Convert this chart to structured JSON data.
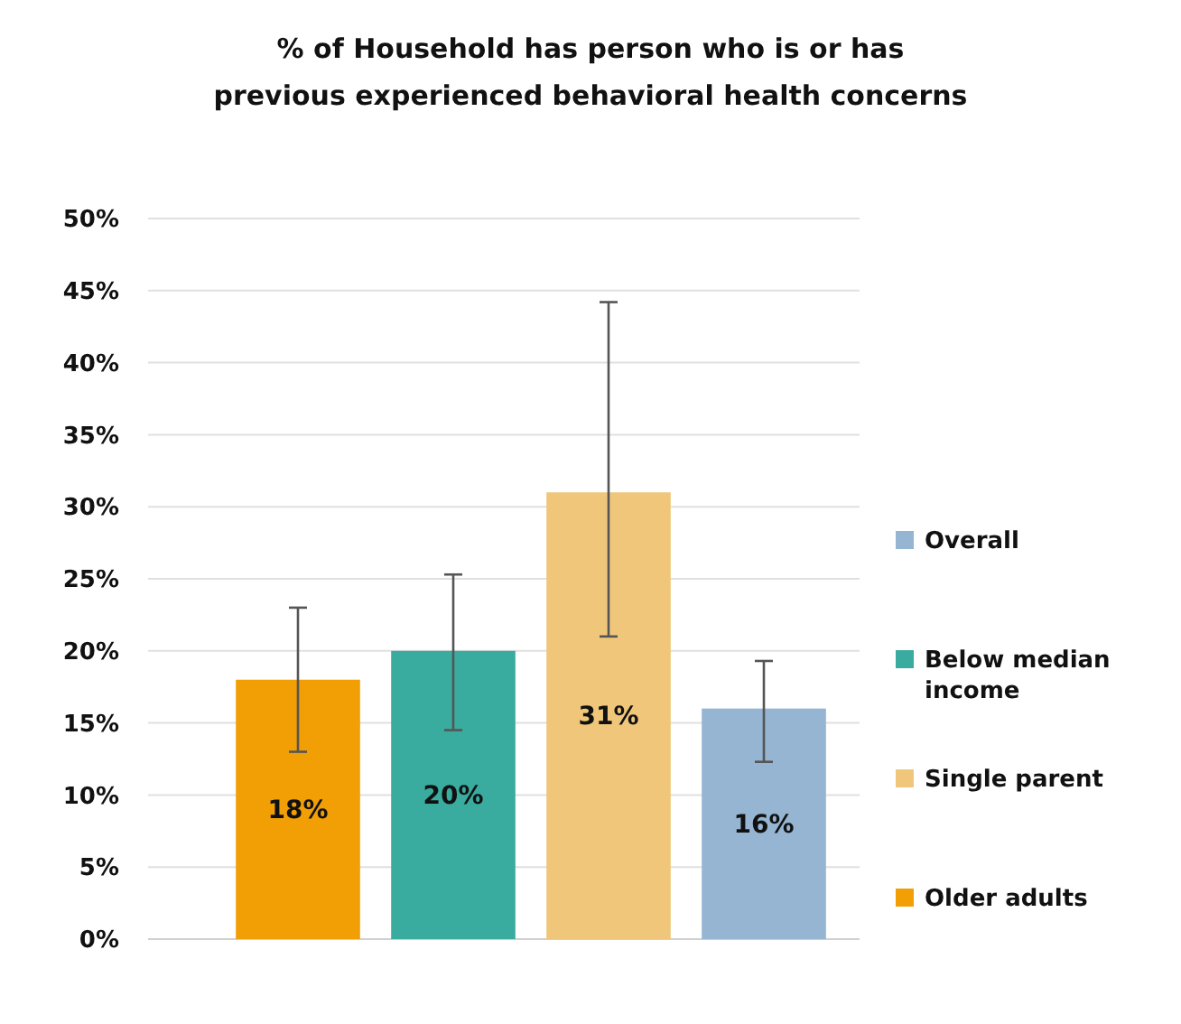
{
  "chart_data": {
    "type": "bar",
    "title": "% of Household has person who is or has previous experienced behavioral health concerns",
    "categories": [
      null,
      null,
      null,
      null
    ],
    "series": [
      {
        "name": "Overall",
        "color": "#95b5d3",
        "values": [
          null,
          null,
          null,
          16
        ],
        "errors": [
          null,
          null,
          null,
          [
            12.3,
            19.3
          ]
        ],
        "value_labels": [
          null,
          null,
          null,
          "16%"
        ]
      },
      {
        "name": "Below median income",
        "color": "#3aab9f",
        "values": [
          null,
          20,
          null,
          null
        ],
        "errors": [
          null,
          [
            14.5,
            25.3
          ],
          null,
          null
        ],
        "value_labels": [
          null,
          "20%",
          null,
          null
        ]
      },
      {
        "name": "Single parent",
        "color": "#f0c77a",
        "values": [
          null,
          null,
          31,
          null
        ],
        "errors": [
          null,
          null,
          [
            21,
            44.2
          ],
          null
        ],
        "value_labels": [
          null,
          null,
          "31%",
          null
        ]
      },
      {
        "name": "Older adults",
        "color": "#f29f05",
        "values": [
          18,
          null,
          null,
          null
        ],
        "errors": [
          [
            13,
            23
          ],
          null,
          null,
          null
        ],
        "value_labels": [
          "18%",
          null,
          null,
          null
        ]
      }
    ],
    "ylim": [
      0,
      50
    ],
    "yticks": [
      {
        "value": 0,
        "label": "0%"
      },
      {
        "value": 5,
        "label": "5%"
      },
      {
        "value": 10,
        "label": "10%"
      },
      {
        "value": 15,
        "label": "15%"
      },
      {
        "value": 20,
        "label": "20%"
      },
      {
        "value": 25,
        "label": "25%"
      },
      {
        "value": 30,
        "label": "30%"
      },
      {
        "value": 35,
        "label": "35%"
      },
      {
        "value": 40,
        "label": "40%"
      },
      {
        "value": 45,
        "label": "45%"
      },
      {
        "value": 50,
        "label": "50%"
      }
    ],
    "grid": "y",
    "legend": "right"
  }
}
